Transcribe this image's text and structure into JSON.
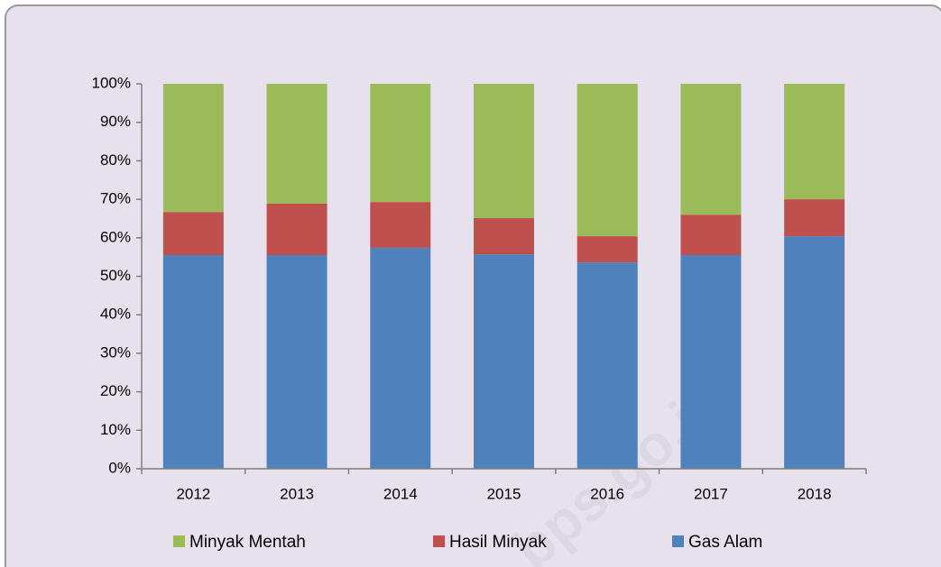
{
  "chart_data": {
    "type": "stacked_bar",
    "categories": [
      "2012",
      "2013",
      "2014",
      "2015",
      "2016",
      "2017",
      "2018"
    ],
    "series": [
      {
        "name": "Minyak Mentah",
        "color": "#9bbb59",
        "values": [
          33.3,
          31.1,
          30.7,
          34.9,
          39.6,
          34.0,
          30.0
        ]
      },
      {
        "name": "Hasil Minyak",
        "color": "#c0504d",
        "values": [
          11.2,
          13.4,
          11.9,
          9.4,
          6.8,
          10.5,
          9.6
        ]
      },
      {
        "name": "Gas Alam",
        "color": "#4f81bd",
        "values": [
          55.5,
          55.5,
          57.4,
          55.7,
          53.6,
          55.5,
          60.4
        ]
      }
    ],
    "ylim": [
      0,
      100
    ],
    "yticks": [
      {
        "value": 0,
        "label": "0%"
      },
      {
        "value": 10,
        "label": "10%"
      },
      {
        "value": 20,
        "label": "20%"
      },
      {
        "value": 30,
        "label": "30%"
      },
      {
        "value": 40,
        "label": "40%"
      },
      {
        "value": 50,
        "label": "50%"
      },
      {
        "value": 60,
        "label": "60%"
      },
      {
        "value": 70,
        "label": "70%"
      },
      {
        "value": 80,
        "label": "80%"
      },
      {
        "value": 90,
        "label": "90%"
      },
      {
        "value": 100,
        "label": "100%"
      }
    ],
    "legend": "bottom",
    "watermark": "bps.go.id"
  }
}
